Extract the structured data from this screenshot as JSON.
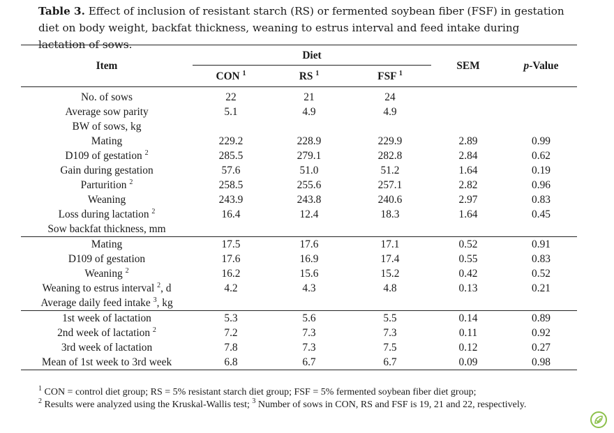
{
  "caption": {
    "label": "Table 3.",
    "text": "Effect of inclusion of resistant starch (RS) or fermented soybean fiber (FSF) in gestation diet on body weight, backfat thickness, weaning to estrus interval and feed intake during lactation of sows."
  },
  "header": {
    "item": "Item",
    "diet": "Diet",
    "con": "CON",
    "rs": "RS",
    "fsf": "FSF",
    "sup1": "1",
    "sem": "SEM",
    "p_italic": "p",
    "p_rest": "-Value"
  },
  "sections": [
    {
      "rows": [
        {
          "item": "No. of sows",
          "sup": "",
          "suffix": "",
          "con": "22",
          "rs": "21",
          "fsf": "24",
          "sem": "",
          "p": ""
        },
        {
          "item": "Average sow parity",
          "sup": "",
          "suffix": "",
          "con": "5.1",
          "rs": "4.9",
          "fsf": "4.9",
          "sem": "",
          "p": ""
        },
        {
          "item": "BW of sows, kg",
          "sup": "",
          "suffix": "",
          "con": "",
          "rs": "",
          "fsf": "",
          "sem": "",
          "p": ""
        },
        {
          "item": "Mating",
          "sup": "",
          "suffix": "",
          "con": "229.2",
          "rs": "228.9",
          "fsf": "229.9",
          "sem": "2.89",
          "p": "0.99"
        },
        {
          "item": "D109 of gestation",
          "sup": "2",
          "suffix": "",
          "con": "285.5",
          "rs": "279.1",
          "fsf": "282.8",
          "sem": "2.84",
          "p": "0.62"
        },
        {
          "item": "Gain during gestation",
          "sup": "",
          "suffix": "",
          "con": "57.6",
          "rs": "51.0",
          "fsf": "51.2",
          "sem": "1.64",
          "p": "0.19"
        },
        {
          "item": "Parturition",
          "sup": "2",
          "suffix": "",
          "con": "258.5",
          "rs": "255.6",
          "fsf": "257.1",
          "sem": "2.82",
          "p": "0.96"
        },
        {
          "item": "Weaning",
          "sup": "",
          "suffix": "",
          "con": "243.9",
          "rs": "243.8",
          "fsf": "240.6",
          "sem": "2.97",
          "p": "0.83"
        },
        {
          "item": "Loss during lactation",
          "sup": "2",
          "suffix": "",
          "con": "16.4",
          "rs": "12.4",
          "fsf": "18.3",
          "sem": "1.64",
          "p": "0.45"
        },
        {
          "item": "Sow backfat thickness, mm",
          "sup": "",
          "suffix": "",
          "con": "",
          "rs": "",
          "fsf": "",
          "sem": "",
          "p": ""
        }
      ]
    },
    {
      "rows": [
        {
          "item": "Mating",
          "sup": "",
          "suffix": "",
          "con": "17.5",
          "rs": "17.6",
          "fsf": "17.1",
          "sem": "0.52",
          "p": "0.91"
        },
        {
          "item": "D109 of gestation",
          "sup": "",
          "suffix": "",
          "con": "17.6",
          "rs": "16.9",
          "fsf": "17.4",
          "sem": "0.55",
          "p": "0.83"
        },
        {
          "item": "Weaning",
          "sup": "2",
          "suffix": "",
          "con": "16.2",
          "rs": "15.6",
          "fsf": "15.2",
          "sem": "0.42",
          "p": "0.52"
        },
        {
          "item": "Weaning to estrus interval",
          "sup": "2",
          "suffix": ", d",
          "con": "4.2",
          "rs": "4.3",
          "fsf": "4.8",
          "sem": "0.13",
          "p": "0.21"
        },
        {
          "item": "Average daily feed intake",
          "sup": "3",
          "suffix": ", kg",
          "con": "",
          "rs": "",
          "fsf": "",
          "sem": "",
          "p": ""
        }
      ]
    },
    {
      "rows": [
        {
          "item": "1st week of lactation",
          "sup": "",
          "suffix": "",
          "con": "5.3",
          "rs": "5.6",
          "fsf": "5.5",
          "sem": "0.14",
          "p": "0.89"
        },
        {
          "item": "2nd week of lactation",
          "sup": "2",
          "suffix": "",
          "con": "7.2",
          "rs": "7.3",
          "fsf": "7.3",
          "sem": "0.11",
          "p": "0.92"
        },
        {
          "item": "3rd week of lactation",
          "sup": "",
          "suffix": "",
          "con": "7.8",
          "rs": "7.3",
          "fsf": "7.5",
          "sem": "0.12",
          "p": "0.27"
        },
        {
          "item": "Mean of 1st week to 3rd week",
          "sup": "",
          "suffix": "",
          "con": "6.8",
          "rs": "6.7",
          "fsf": "6.7",
          "sem": "0.09",
          "p": "0.98"
        }
      ]
    }
  ],
  "footnotes": {
    "n1_sup": "1",
    "n1_text": "CON = control diet group; RS = 5% resistant starch diet group; FSF = 5% fermented soybean fiber diet group;",
    "n2_sup": "2",
    "n2_text": "Results were analyzed using the Kruskal-Wallis test;",
    "n3_sup": "3",
    "n3_text": "Number of sows in CON, RS and FSF is 19, 21 and 22, respectively."
  },
  "badge_icon": "leaf-check-icon",
  "accent_color": "#8cc04b"
}
